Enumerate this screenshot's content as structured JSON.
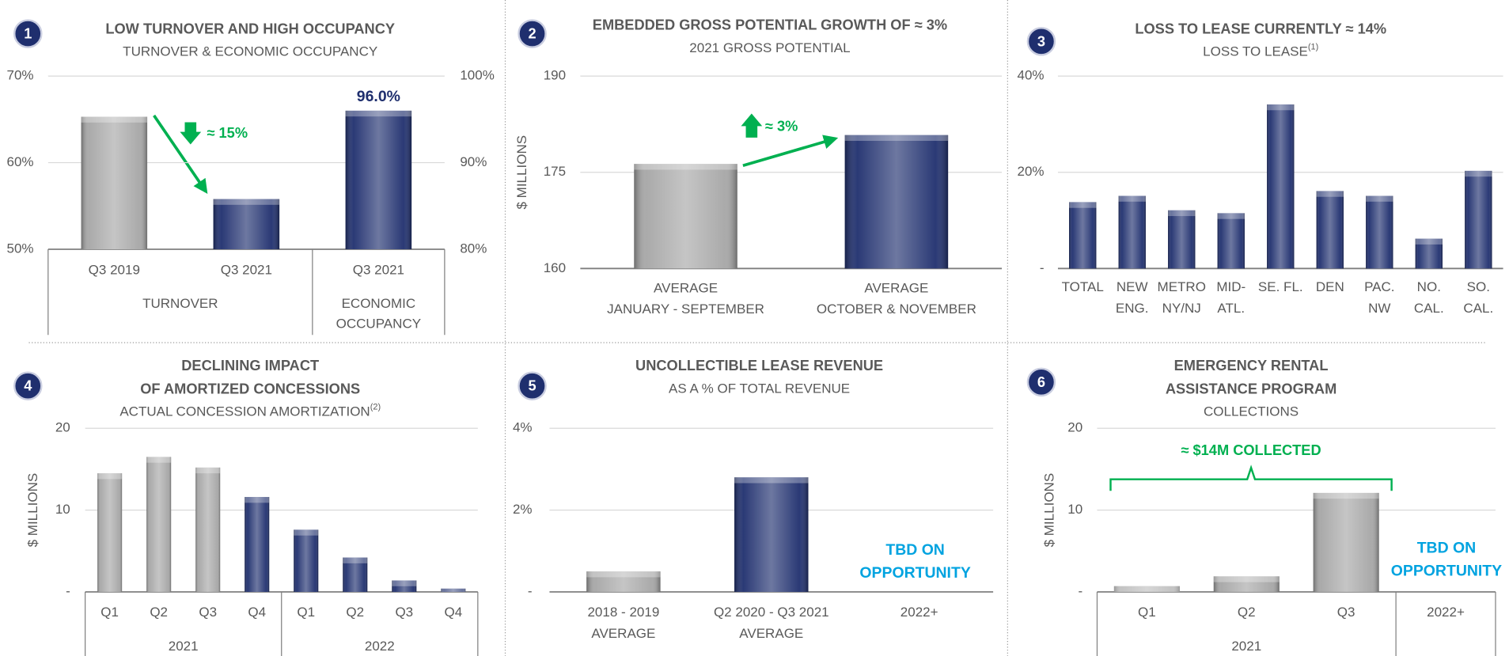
{
  "chart_data": [
    {
      "type": "bar",
      "badge": "1",
      "title": "LOW TURNOVER AND HIGH OCCUPANCY",
      "subtitle": "TURNOVER & ECONOMIC OCCUPANCY",
      "categories": [
        "Q3 2019",
        "Q3 2021",
        "Q3 2021"
      ],
      "values": [
        65.3,
        55.8,
        96.0
      ],
      "axes": [
        "y",
        "y",
        "y2"
      ],
      "value_labels": [
        null,
        null,
        "96.0%"
      ],
      "value_label_color": "#1f2f6e",
      "colors": [
        "#a6a6a6",
        "#1f2f6e",
        "#1f2f6e"
      ],
      "groups": [
        {
          "label": "TURNOVER",
          "span": 2
        },
        {
          "label": [
            "ECONOMIC",
            "OCCUPANCY"
          ],
          "span": 1
        }
      ],
      "ylim": [
        50,
        70
      ],
      "yticks": [
        {
          "value": 50,
          "label": "50%"
        },
        {
          "value": 60,
          "label": "60%"
        },
        {
          "value": 70,
          "label": "70%"
        }
      ],
      "y2lim": [
        80,
        100
      ],
      "y2ticks": [
        {
          "value": 80,
          "label": "80%"
        },
        {
          "value": 90,
          "label": "90%"
        },
        {
          "value": 100,
          "label": "100%"
        }
      ],
      "grid": true,
      "annotations": [
        {
          "text": "≈ 15%",
          "color": "#00b050"
        }
      ]
    },
    {
      "type": "bar",
      "badge": "2",
      "title": "EMBEDDED GROSS POTENTIAL GROWTH OF ≈ 3%",
      "subtitle": "2021 GROSS POTENTIAL",
      "ylabel": "$ MILLIONS",
      "categories": [
        [
          "AVERAGE",
          "JANUARY - SEPTEMBER"
        ],
        [
          "AVERAGE",
          "OCTOBER & NOVEMBER"
        ]
      ],
      "values": [
        176.3,
        180.8
      ],
      "colors": [
        "#a6a6a6",
        "#1f2f6e"
      ],
      "ylim": [
        160,
        190
      ],
      "yticks": [
        160,
        175,
        190
      ],
      "grid": true,
      "annotations": [
        {
          "text": "≈ 3%",
          "color": "#00b050"
        }
      ]
    },
    {
      "type": "bar",
      "badge": "3",
      "title": "LOSS TO LEASE CURRENTLY ≈ 14%",
      "subtitle": "LOSS TO LEASE",
      "subtitle_note": "(1)",
      "categories": [
        "TOTAL",
        [
          "NEW",
          "ENG."
        ],
        [
          "METRO",
          "NY/NJ"
        ],
        [
          "MID-",
          "ATL."
        ],
        "SE. FL.",
        "DEN",
        [
          "PAC.",
          "NW"
        ],
        [
          "NO.",
          "CAL."
        ],
        [
          "SO.",
          "CAL."
        ]
      ],
      "values": [
        13.8,
        15.1,
        12.1,
        11.5,
        34.1,
        16.1,
        15.1,
        6.2,
        20.3
      ],
      "colors": [
        "#1f2f6e",
        "#1f2f6e",
        "#1f2f6e",
        "#1f2f6e",
        "#1f2f6e",
        "#1f2f6e",
        "#1f2f6e",
        "#1f2f6e",
        "#1f2f6e"
      ],
      "ylim": [
        0,
        40
      ],
      "yticks": [
        {
          "value": 0,
          "label": "-"
        },
        {
          "value": 20,
          "label": "20%"
        },
        {
          "value": 40,
          "label": "40%"
        }
      ],
      "grid": true
    },
    {
      "type": "bar",
      "badge": "4",
      "title": [
        "DECLINING IMPACT",
        "OF AMORTIZED CONCESSIONS"
      ],
      "subtitle": "ACTUAL CONCESSION AMORTIZATION",
      "subtitle_note": "(2)",
      "ylabel": "$ MILLIONS",
      "categories": [
        "Q1",
        "Q2",
        "Q3",
        "Q4",
        "Q1",
        "Q2",
        "Q3",
        "Q4"
      ],
      "values": [
        14.5,
        16.5,
        15.2,
        11.6,
        7.6,
        4.2,
        1.4,
        0.4
      ],
      "colors": [
        "#a6a6a6",
        "#a6a6a6",
        "#a6a6a6",
        "#1f2f6e",
        "#1f2f6e",
        "#1f2f6e",
        "#1f2f6e",
        "#1f2f6e"
      ],
      "groups": [
        {
          "label": "2021",
          "span": 4
        },
        {
          "label": "2022",
          "span": 4
        }
      ],
      "ylim": [
        0,
        20
      ],
      "yticks": [
        {
          "value": 0,
          "label": "-"
        },
        10,
        20
      ],
      "grid": true
    },
    {
      "type": "bar",
      "badge": "5",
      "title": "UNCOLLECTIBLE LEASE REVENUE",
      "subtitle": "AS A % OF TOTAL REVENUE",
      "categories": [
        [
          "2018 - 2019",
          "AVERAGE"
        ],
        [
          "Q2 2020 - Q3 2021",
          "AVERAGE"
        ],
        "2022+"
      ],
      "values": [
        0.5,
        2.8,
        null
      ],
      "colors": [
        "#a6a6a6",
        "#1f2f6e",
        null
      ],
      "ylim": [
        0,
        4
      ],
      "yticks": [
        {
          "value": 0,
          "label": "-"
        },
        {
          "value": 2,
          "label": "2%"
        },
        {
          "value": 4,
          "label": "4%"
        }
      ],
      "grid": true,
      "annotations": [
        {
          "text": [
            "TBD ON",
            "OPPORTUNITY"
          ],
          "color": "#00a3e0"
        }
      ]
    },
    {
      "type": "bar",
      "badge": "6",
      "title": [
        "EMERGENCY RENTAL",
        "ASSISTANCE PROGRAM"
      ],
      "subtitle": "COLLECTIONS",
      "ylabel": "$ MILLIONS",
      "categories": [
        "Q1",
        "Q2",
        "Q3",
        "2022+"
      ],
      "values": [
        0.7,
        1.9,
        12.1,
        null
      ],
      "colors": [
        "#a6a6a6",
        "#a6a6a6",
        "#a6a6a6",
        null
      ],
      "groups": [
        {
          "label": "2021",
          "span": 3
        }
      ],
      "ylim": [
        0,
        20
      ],
      "yticks": [
        {
          "value": 0,
          "label": "-"
        },
        10,
        20
      ],
      "grid": true,
      "annotations": [
        {
          "text": "≈ $14M COLLECTED",
          "color": "#00b050"
        },
        {
          "text": [
            "TBD ON",
            "OPPORTUNITY"
          ],
          "color": "#00a3e0"
        }
      ]
    }
  ]
}
